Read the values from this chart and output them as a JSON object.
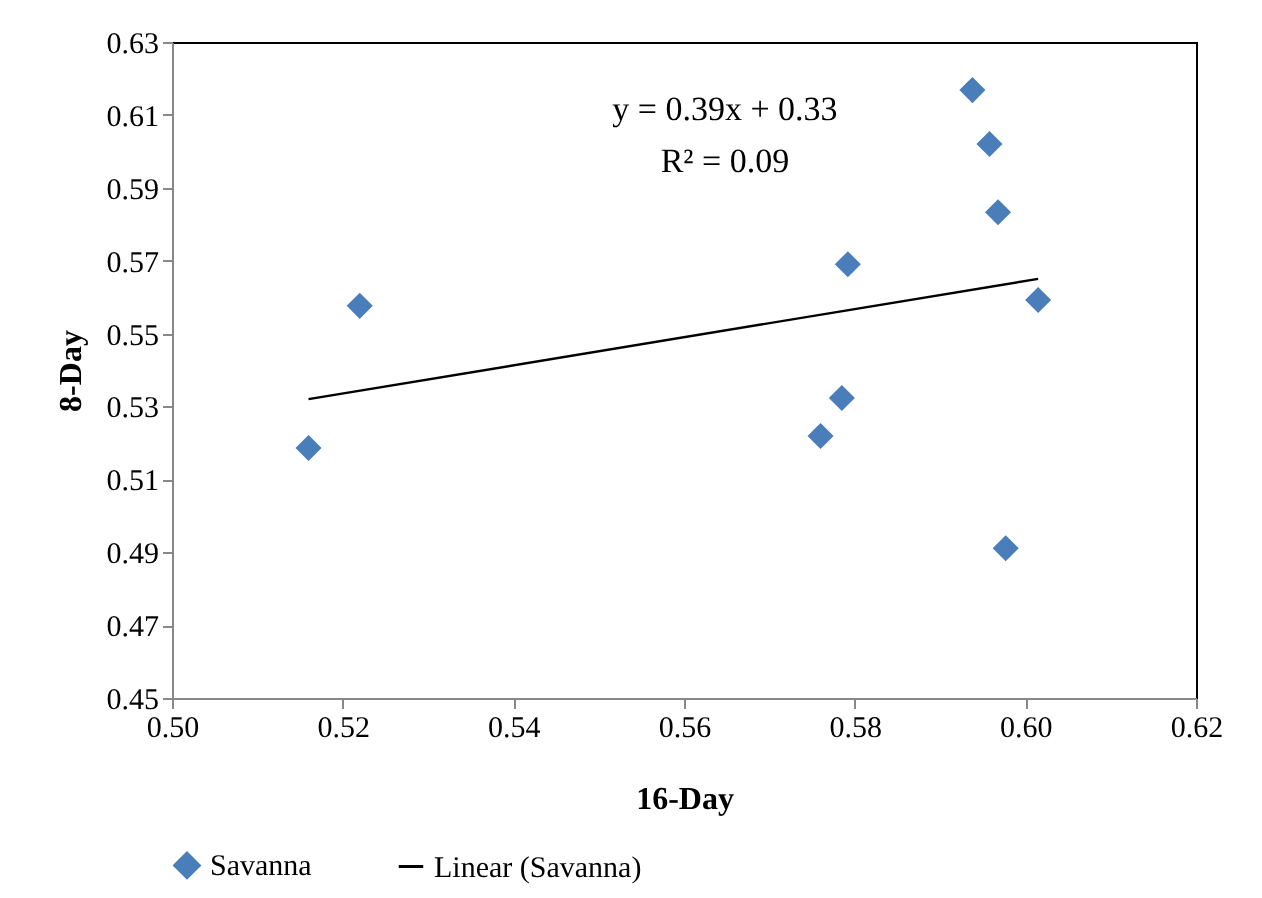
{
  "chart_data": {
    "type": "scatter",
    "xlabel": "16-Day",
    "ylabel": "8-Day",
    "xlim": [
      0.5,
      0.62
    ],
    "xticks": [
      {
        "value": 0.5,
        "label": "0.50"
      },
      0.52,
      0.54,
      0.56,
      0.58,
      {
        "value": 0.6,
        "label": "0.60"
      },
      0.62
    ],
    "ylim": [
      0.45,
      0.63
    ],
    "yticks": [
      0.45,
      0.47,
      0.49,
      0.51,
      0.53,
      0.55,
      0.57,
      0.59,
      0.61,
      0.63
    ],
    "x": [
      0.516,
      0.522,
      0.5938,
      0.5958,
      0.5968,
      0.5792,
      0.6015,
      0.5785,
      0.576,
      0.5977
    ],
    "series": [
      {
        "name": "Savanna",
        "type": "scatter",
        "color": "#4a7ebb",
        "marker": "diamond",
        "values": [
          0.5186,
          0.5576,
          0.6168,
          0.602,
          0.5833,
          0.569,
          0.5592,
          0.5323,
          0.5219,
          0.4911
        ]
      },
      {
        "name": "Linear (Savanna)",
        "type": "line",
        "color": "#000000",
        "x": [
          0.516,
          0.6015
        ],
        "values": [
          0.532,
          0.565
        ]
      }
    ],
    "annotations": [
      "y = 0.39x + 0.33",
      "R² = 0.09"
    ],
    "grid": false,
    "legend": "bottom"
  }
}
